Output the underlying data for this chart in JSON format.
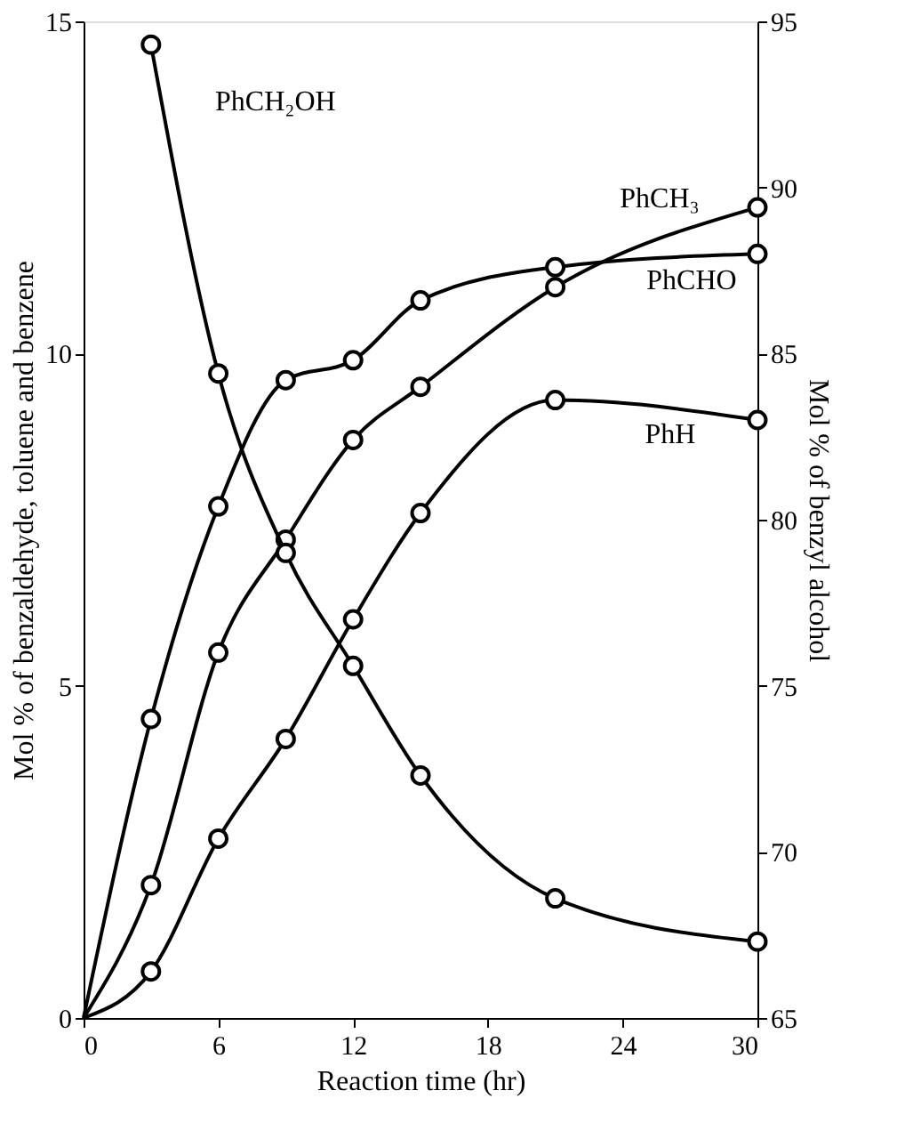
{
  "chart_data": {
    "type": "line",
    "xlabel": "Reaction time (hr)",
    "ylabel": "Mol % of benzaldehyde, toluene and benzene",
    "y2label": "Mol % of benzyl alcohol",
    "xlim": [
      0,
      30
    ],
    "xticks": [
      0,
      6,
      12,
      18,
      24,
      30
    ],
    "ylim": [
      0,
      15
    ],
    "yticks": [
      0,
      5,
      10,
      15
    ],
    "y2lim": [
      65,
      95
    ],
    "y2ticks": [
      65,
      70,
      75,
      80,
      85,
      90,
      95
    ],
    "grid": false,
    "series": [
      {
        "name": "PhCH₂OH",
        "axis": "y2",
        "color": "#000000",
        "marker": "circle",
        "x": [
          3,
          6,
          9,
          12,
          15,
          21,
          30
        ],
        "values": [
          94.3,
          84.4,
          79.0,
          75.6,
          72.3,
          68.6,
          67.3
        ]
      },
      {
        "name": "PhCHO",
        "color": "#000000",
        "marker": "circle",
        "x": [
          0,
          3,
          6,
          9,
          12,
          15,
          21,
          30
        ],
        "values": [
          0,
          4.5,
          7.7,
          9.6,
          9.9,
          10.8,
          11.3,
          11.5
        ]
      },
      {
        "name": "PhCH₃",
        "color": "#000000",
        "marker": "circle",
        "x": [
          0,
          3,
          6,
          9,
          12,
          15,
          21,
          30
        ],
        "values": [
          0,
          2.0,
          5.5,
          7.2,
          8.7,
          9.5,
          11.0,
          12.2
        ]
      },
      {
        "name": "PhH",
        "color": "#000000",
        "marker": "circle",
        "x": [
          0,
          3,
          6,
          9,
          12,
          15,
          21,
          30
        ],
        "values": [
          0,
          0.7,
          2.7,
          4.2,
          6.0,
          7.6,
          9.3,
          9.0
        ]
      }
    ]
  }
}
